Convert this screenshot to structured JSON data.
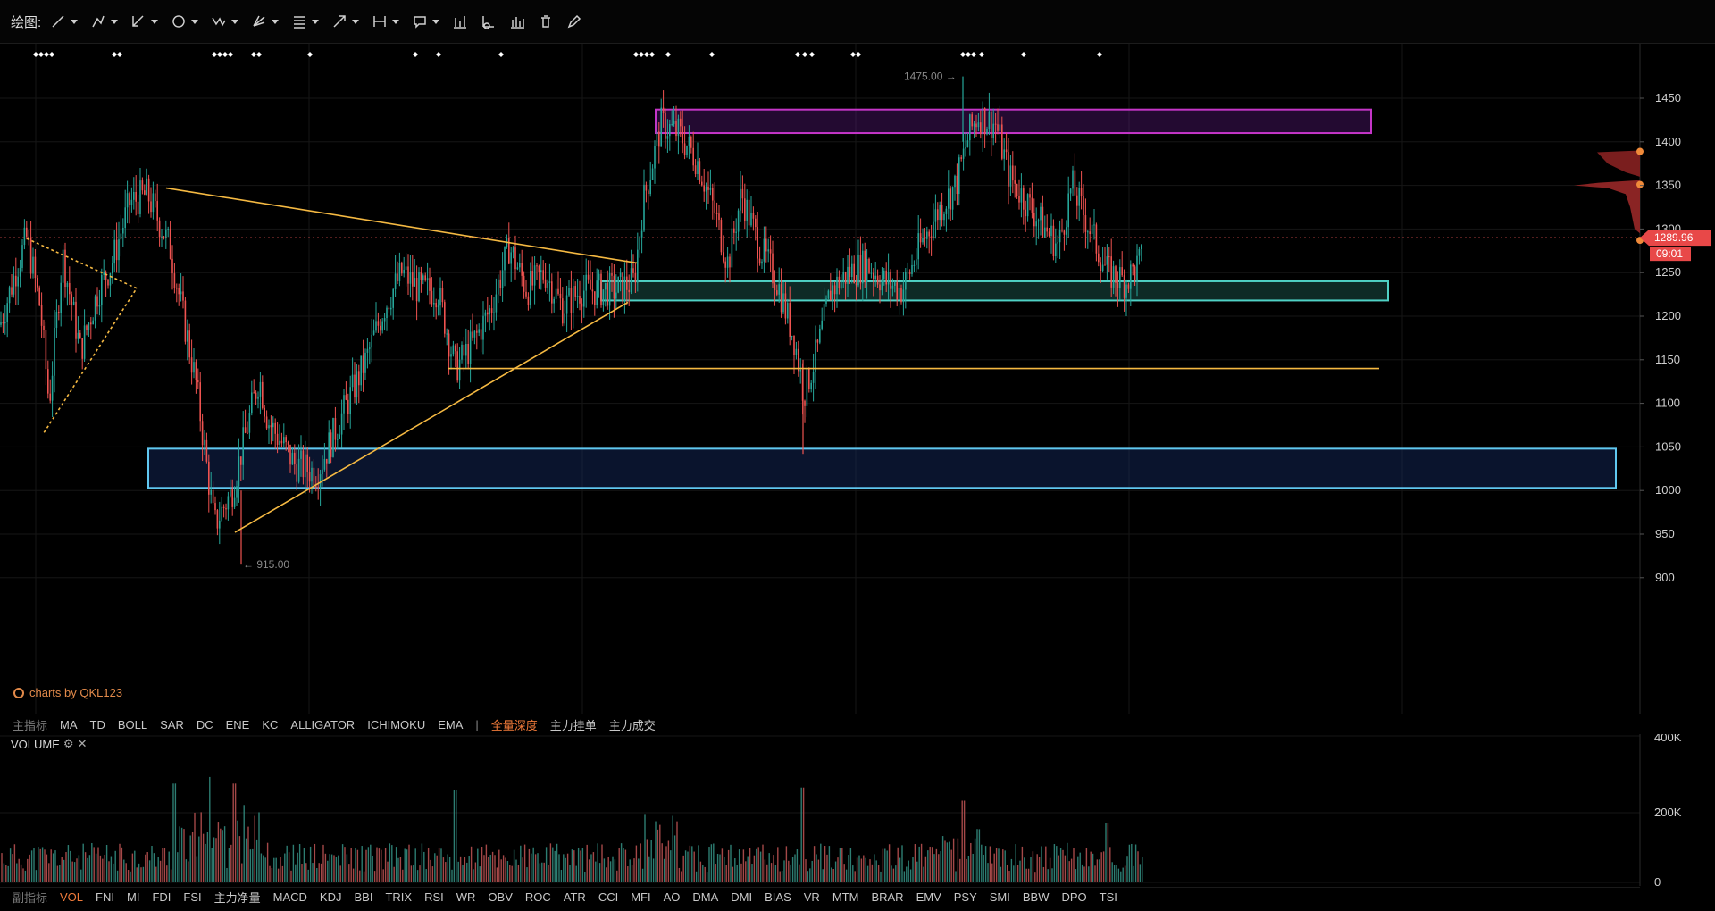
{
  "toolbar": {
    "label": "绘图:",
    "tools": [
      {
        "name": "trend-line-tool",
        "icon": "line-icon",
        "dropdown": true
      },
      {
        "name": "multi-line-tool",
        "icon": "polyline-icon",
        "dropdown": true
      },
      {
        "name": "channel-tool",
        "icon": "channel-icon",
        "dropdown": true
      },
      {
        "name": "shape-tool",
        "icon": "circle-icon",
        "dropdown": true
      },
      {
        "name": "pattern-tool",
        "icon": "pattern-icon",
        "dropdown": true
      },
      {
        "name": "gann-tool",
        "icon": "gann-icon",
        "dropdown": true
      },
      {
        "name": "fib-tool",
        "icon": "fib-icon",
        "dropdown": true
      },
      {
        "name": "arrow-tool",
        "icon": "arrow-icon",
        "dropdown": true
      },
      {
        "name": "measure-tool",
        "icon": "measure-icon",
        "dropdown": true
      },
      {
        "name": "text-tool",
        "icon": "comment-icon",
        "dropdown": true
      },
      {
        "name": "indicator-tool",
        "icon": "bar-chart-icon",
        "dropdown": false
      },
      {
        "name": "compare-tool",
        "icon": "chart-add-icon",
        "dropdown": false
      },
      {
        "name": "volume-tool",
        "icon": "histogram-icon",
        "dropdown": false
      },
      {
        "name": "delete-tool",
        "icon": "trash-icon",
        "dropdown": false
      },
      {
        "name": "edit-tool",
        "icon": "pen-icon",
        "dropdown": false
      }
    ]
  },
  "price_axis": {
    "ticks": [
      "1450",
      "1400",
      "1350",
      "1300",
      "1250",
      "1200",
      "1150",
      "1100",
      "1050",
      "1000",
      "950",
      "900"
    ],
    "current_price": "1289.96",
    "countdown": "09:01"
  },
  "annotations": {
    "high_label": "1475.00",
    "low_label": "915.00"
  },
  "watermark": "charts by QKL123",
  "indicator_bar": {
    "label": "主指标",
    "items": [
      "MA",
      "TD",
      "BOLL",
      "SAR",
      "DC",
      "ENE",
      "KC",
      "ALLIGATOR",
      "ICHIMOKU",
      "EMA"
    ],
    "separator": "|",
    "extra": [
      {
        "label": "全量深度",
        "active": true
      },
      {
        "label": "主力挂单",
        "active": false
      },
      {
        "label": "主力成交",
        "active": false
      }
    ]
  },
  "volume_panel": {
    "title": "VOLUME",
    "ticks": [
      "400K",
      "200K",
      "0"
    ]
  },
  "sub_indicator_bar": {
    "label": "副指标",
    "items": [
      {
        "label": "VOL",
        "active": true
      },
      {
        "label": "FNI"
      },
      {
        "label": "MI"
      },
      {
        "label": "FDI"
      },
      {
        "label": "FSI"
      },
      {
        "label": "主力净量"
      },
      {
        "label": "MACD"
      },
      {
        "label": "KDJ"
      },
      {
        "label": "BBI"
      },
      {
        "label": "TRIX"
      },
      {
        "label": "RSI"
      },
      {
        "label": "WR"
      },
      {
        "label": "OBV"
      },
      {
        "label": "ROC"
      },
      {
        "label": "ATR"
      },
      {
        "label": "CCI"
      },
      {
        "label": "MFI"
      },
      {
        "label": "AO"
      },
      {
        "label": "DMA"
      },
      {
        "label": "DMI"
      },
      {
        "label": "BIAS"
      },
      {
        "label": "VR"
      },
      {
        "label": "MTM"
      },
      {
        "label": "BRAR"
      },
      {
        "label": "EMV"
      },
      {
        "label": "PSY"
      },
      {
        "label": "SMI"
      },
      {
        "label": "BBW"
      },
      {
        "label": "DPO"
      },
      {
        "label": "TSI"
      }
    ]
  },
  "colors": {
    "up": "#26a69a",
    "down": "#ef5350",
    "trendline": "#f5b942",
    "zone_purple": "#c535c8",
    "zone_teal": "#4fd1c5",
    "zone_blue": "#60c8f0",
    "price_tag": "#e84848"
  }
}
